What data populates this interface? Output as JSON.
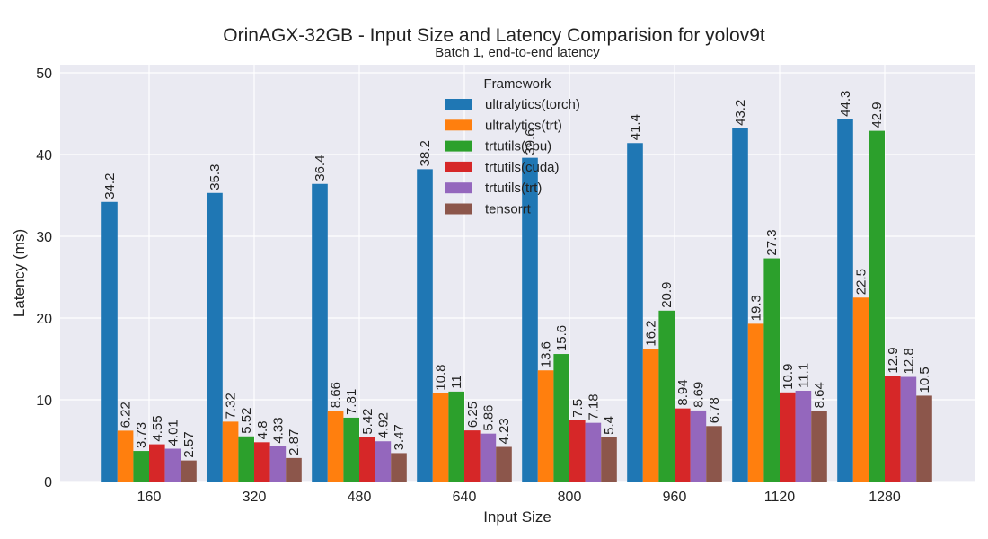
{
  "chart_data": {
    "type": "bar",
    "title": "OrinAGX-32GB - Input Size and Latency Comparision for yolov9t",
    "subtitle": "Batch 1, end-to-end latency",
    "xlabel": "Input Size",
    "ylabel": "Latency (ms)",
    "ylim": [
      0,
      50
    ],
    "yticks": [
      0,
      10,
      20,
      30,
      40,
      50
    ],
    "grid": true,
    "legend_title": "Framework",
    "legend_position": "top-center",
    "categories": [
      "160",
      "320",
      "480",
      "640",
      "800",
      "960",
      "1120",
      "1280"
    ],
    "series": [
      {
        "name": "ultralytics(torch)",
        "color": "#1f77b4",
        "values": [
          34.2,
          35.3,
          36.4,
          38.2,
          39.6,
          41.4,
          43.2,
          44.3
        ],
        "labels": [
          "34.2",
          "35.3",
          "36.4",
          "38.2",
          "39.6",
          "41.4",
          "43.2",
          "44.3"
        ]
      },
      {
        "name": "ultralytics(trt)",
        "color": "#ff7f0e",
        "values": [
          6.22,
          7.32,
          8.66,
          10.8,
          13.6,
          16.2,
          19.3,
          22.5
        ],
        "labels": [
          "6.22",
          "7.32",
          "8.66",
          "10.8",
          "13.6",
          "16.2",
          "19.3",
          "22.5"
        ]
      },
      {
        "name": "trtutils(cpu)",
        "color": "#2ca02c",
        "values": [
          3.73,
          5.52,
          7.81,
          11,
          15.6,
          20.9,
          27.3,
          42.9
        ],
        "labels": [
          "3.73",
          "5.52",
          "7.81",
          "11",
          "15.6",
          "20.9",
          "27.3",
          "42.9"
        ]
      },
      {
        "name": "trtutils(cuda)",
        "color": "#d62728",
        "values": [
          4.55,
          4.8,
          5.42,
          6.25,
          7.5,
          8.94,
          10.9,
          12.9
        ],
        "labels": [
          "4.55",
          "4.8",
          "5.42",
          "6.25",
          "7.5",
          "8.94",
          "10.9",
          "12.9"
        ]
      },
      {
        "name": "trtutils(trt)",
        "color": "#9467bd",
        "values": [
          4.01,
          4.33,
          4.92,
          5.86,
          7.18,
          8.69,
          11.1,
          12.8
        ],
        "labels": [
          "4.01",
          "4.33",
          "4.92",
          "5.86",
          "7.18",
          "8.69",
          "11.1",
          "12.8"
        ]
      },
      {
        "name": "tensorrt",
        "color": "#8c564b",
        "values": [
          2.57,
          2.87,
          3.47,
          4.23,
          5.4,
          6.78,
          8.64,
          10.5
        ],
        "labels": [
          "2.57",
          "2.87",
          "3.47",
          "4.23",
          "5.4",
          "6.78",
          "8.64",
          "10.5"
        ]
      }
    ]
  }
}
